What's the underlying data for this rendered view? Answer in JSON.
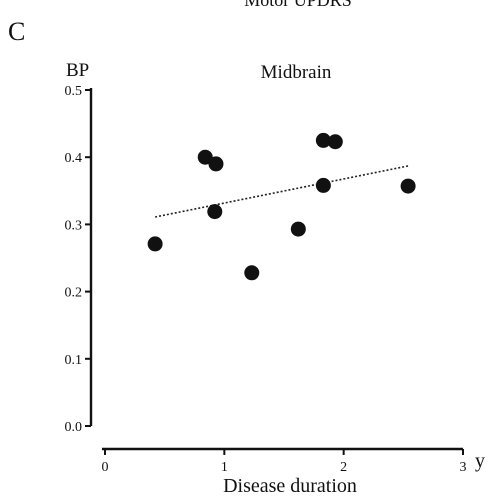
{
  "header": {
    "top_title": "Motor UPDRS",
    "panel_letter": "C"
  },
  "chart_data": {
    "type": "scatter",
    "title": "Midbrain",
    "ylabel": "BP",
    "xlabel": "Disease duration",
    "x_unit": "y",
    "ylim": [
      0.0,
      0.5
    ],
    "xlim": [
      0,
      3
    ],
    "y_ticks": [
      "0.0",
      "0.1",
      "0.2",
      "0.3",
      "0.4",
      "0.5"
    ],
    "x_ticks": [
      "0",
      "1",
      "2",
      "3"
    ],
    "grid": false,
    "points": [
      {
        "x": 0.42,
        "y": 0.271
      },
      {
        "x": 0.84,
        "y": 0.4
      },
      {
        "x": 0.93,
        "y": 0.39
      },
      {
        "x": 0.92,
        "y": 0.319
      },
      {
        "x": 1.23,
        "y": 0.228
      },
      {
        "x": 1.62,
        "y": 0.293
      },
      {
        "x": 1.83,
        "y": 0.425
      },
      {
        "x": 1.93,
        "y": 0.423
      },
      {
        "x": 1.83,
        "y": 0.358
      },
      {
        "x": 2.54,
        "y": 0.357
      }
    ],
    "trendline": {
      "x": [
        0.42,
        2.54
      ],
      "y": [
        0.311,
        0.387
      ]
    }
  }
}
